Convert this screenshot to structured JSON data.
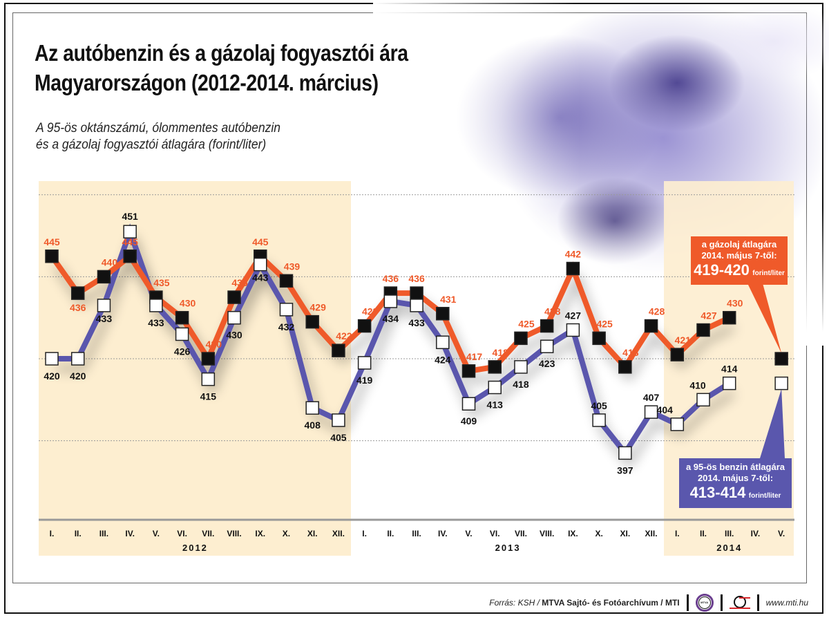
{
  "header": {
    "title_line1": "Az autóbenzin és a gázolaj fogyasztói ára",
    "title_line2": "Magyarországon (2012-2014. március)",
    "subtitle_line1": "A 95-ös oktánszámú, ólommentes autóbenzin",
    "subtitle_line2": "és a gázolaj fogyasztói átlagára (forint/liter)"
  },
  "chart_data": {
    "type": "line",
    "title": "Az autóbenzin és a gázolaj fogyasztói ára Magyarországon (2012-2014. március)",
    "ylabel": "forint/liter",
    "ylim": [
      395,
      465
    ],
    "gridlines": [
      460,
      440,
      420,
      400
    ],
    "grid": true,
    "categories": [
      "I.",
      "II.",
      "III.",
      "IV.",
      "V.",
      "VI.",
      "VII.",
      "VIII.",
      "IX.",
      "X.",
      "XI.",
      "XII.",
      "I.",
      "II.",
      "III.",
      "IV.",
      "V.",
      "VI.",
      "VII.",
      "VIII.",
      "IX.",
      "X.",
      "XI.",
      "XII.",
      "I.",
      "II.",
      "III.",
      "IV.",
      "V."
    ],
    "years": [
      {
        "label": "2012",
        "start": 0,
        "end": 11
      },
      {
        "label": "2013",
        "start": 12,
        "end": 23
      },
      {
        "label": "2014",
        "start": 24,
        "end": 28
      }
    ],
    "series": [
      {
        "name": "gázolaj",
        "color": "#ef5a2a",
        "marker": "black-square",
        "values": [
          445,
          436,
          440,
          445,
          435,
          430,
          420,
          435,
          445,
          439,
          429,
          422,
          428,
          436,
          436,
          431,
          417,
          418,
          425,
          428,
          442,
          425,
          418,
          428,
          421,
          427,
          430,
          null,
          null
        ],
        "projection": {
          "index": 28,
          "value": 420,
          "label": "419-420"
        }
      },
      {
        "name": "95-ös benzin",
        "color": "#5a57ad",
        "marker": "white-square",
        "values": [
          420,
          420,
          433,
          451,
          433,
          426,
          415,
          430,
          443,
          432,
          408,
          405,
          419,
          434,
          433,
          424,
          409,
          413,
          418,
          423,
          427,
          405,
          397,
          407,
          404,
          410,
          414,
          null,
          null
        ],
        "projection": {
          "index": 28,
          "value": 414,
          "label": "413-414"
        }
      }
    ]
  },
  "callouts": {
    "diesel": {
      "line1": "a gázolaj átlagára",
      "line2": "2014. május 7-től:",
      "value": "419-420",
      "unit": "forint/liter"
    },
    "petrol": {
      "line1": "a 95-ös benzin átlagára",
      "line2": "2014. május 7-től:",
      "value": "413-414",
      "unit": "forint/liter"
    }
  },
  "footer": {
    "source_prefix": "Forrás: KSH / ",
    "source_bold": "MTVA Sajtó- és Fotóarchívum / MTI",
    "mtva_logo_text": "MTVA",
    "url": "www.mti.hu"
  },
  "colors": {
    "diesel": "#ef5a2a",
    "petrol": "#5a57ad",
    "band": "#fdeed0"
  }
}
